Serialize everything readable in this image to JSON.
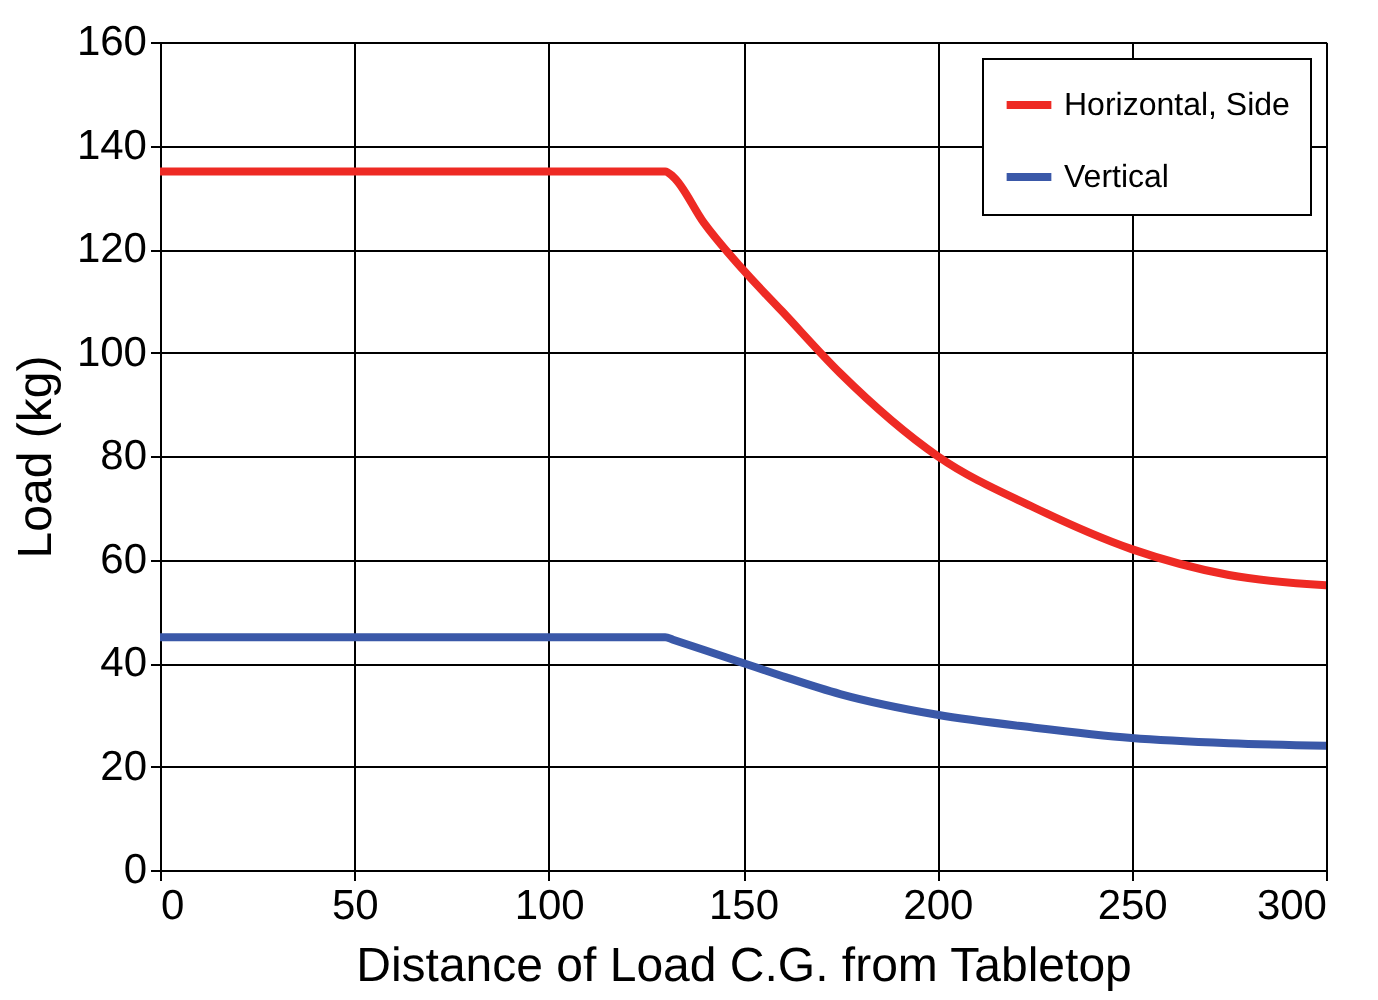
{
  "chart_data": {
    "type": "line",
    "xlabel": "Distance  of Load C.G. from Tabletop",
    "ylabel": "Load  (kg)",
    "xlim": [
      0,
      300
    ],
    "xticks": [
      0,
      50,
      100,
      150,
      200,
      250,
      300
    ],
    "ylim": [
      0,
      160
    ],
    "yticks": [
      0,
      20,
      40,
      60,
      80,
      100,
      120,
      140,
      160
    ],
    "grid": true,
    "legend": "top right",
    "marker": "none",
    "line_style": "solid",
    "series": [
      {
        "name": "Horizontal, Side",
        "color": "#ee2a24",
        "x": [
          0,
          130,
          132,
          140,
          150,
          160,
          175,
          200,
          225,
          250,
          275,
          300
        ],
        "values": [
          135,
          135,
          134,
          125,
          116,
          108,
          96,
          80,
          70,
          62,
          57,
          55
        ]
      },
      {
        "name": "Vertical",
        "color": "#3a58a8",
        "x": [
          0,
          130,
          132,
          140,
          150,
          160,
          175,
          200,
          225,
          250,
          275,
          300
        ],
        "values": [
          45,
          45,
          44.5,
          42.5,
          40,
          37.5,
          34,
          30,
          27.5,
          25.5,
          24.5,
          24
        ]
      }
    ]
  }
}
